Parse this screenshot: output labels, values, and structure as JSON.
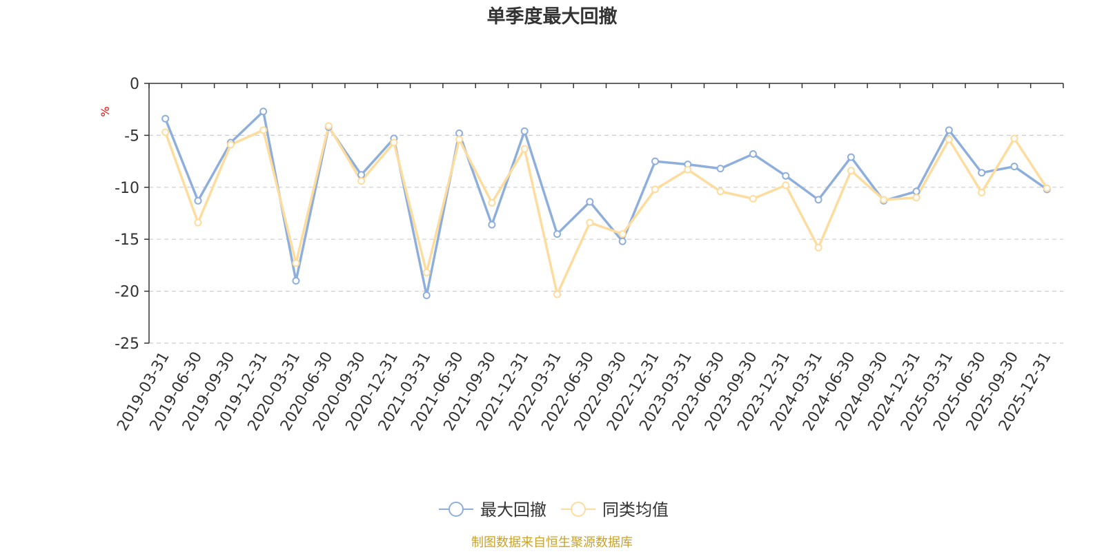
{
  "chart_data": {
    "type": "line",
    "title": "单季度最大回撤",
    "ylabel": "%",
    "ylim": [
      -25,
      0
    ],
    "yticks": [
      0,
      -5,
      -10,
      -15,
      -20,
      -25
    ],
    "grid": true,
    "legend_position": "bottom",
    "categories": [
      "2019-03-31",
      "2019-06-30",
      "2019-09-30",
      "2019-12-31",
      "2020-03-31",
      "2020-06-30",
      "2020-09-30",
      "2020-12-31",
      "2021-03-31",
      "2021-06-30",
      "2021-09-30",
      "2021-12-31",
      "2022-03-31",
      "2022-06-30",
      "2022-09-30",
      "2022-12-31",
      "2023-03-31",
      "2023-06-30",
      "2023-09-30",
      "2023-12-31",
      "2024-03-31",
      "2024-06-30",
      "2024-09-30",
      "2024-12-31",
      "2025-03-31",
      "2025-06-30",
      "2025-09-30",
      "2025-12-31"
    ],
    "series": [
      {
        "name": "最大回撤",
        "color": "#8eaedc",
        "values": [
          -3.4,
          -11.3,
          -5.7,
          -2.7,
          -19.0,
          -4.2,
          -8.8,
          -5.3,
          -20.4,
          -4.8,
          -13.6,
          -4.6,
          -14.5,
          -11.4,
          -15.2,
          -7.5,
          -7.8,
          -8.2,
          -6.8,
          -8.9,
          -11.2,
          -7.1,
          -11.3,
          -10.4,
          -4.5,
          -8.6,
          -8.0,
          -10.2
        ]
      },
      {
        "name": "同类均值",
        "color": "#fddc9d",
        "values": [
          -4.7,
          -13.4,
          -5.9,
          -4.5,
          -17.3,
          -4.1,
          -9.4,
          -5.7,
          -18.2,
          -5.4,
          -11.5,
          -6.3,
          -20.3,
          -13.4,
          -14.5,
          -10.2,
          -8.3,
          -10.4,
          -11.1,
          -9.8,
          -15.8,
          -8.4,
          -11.2,
          -11.0,
          -5.4,
          -10.5,
          -5.3,
          -10.1
        ]
      }
    ],
    "source_note": "制图数据来自恒生聚源数据库",
    "colors": {
      "title": "#333333",
      "axis": "#333333",
      "tick_label": "#333333",
      "grid": "#cccccc",
      "unit": "#ff0000",
      "source": "#c9a227"
    }
  }
}
